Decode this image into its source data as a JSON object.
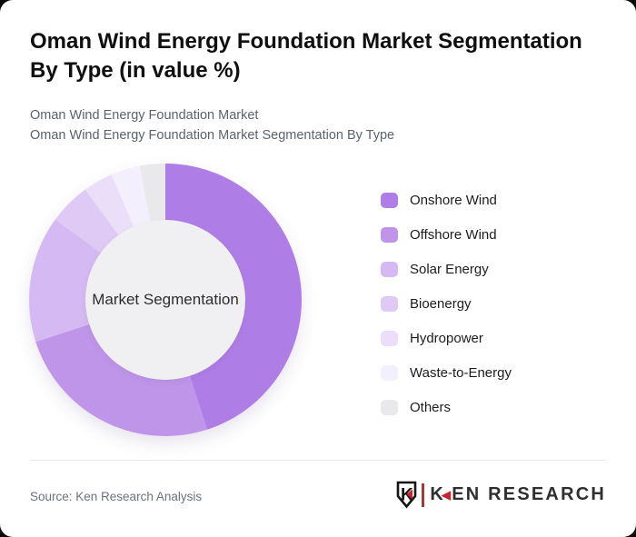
{
  "page": {
    "title": "Oman Wind Energy Foundation Market Segmentation By Type (in value %)",
    "subtitle_lines": [
      "Oman Wind Energy Foundation Market",
      "Oman Wind Energy Foundation Market Segmentation By Type"
    ]
  },
  "chart_data": {
    "type": "pie",
    "variant": "donut",
    "title": "Oman Wind Energy Foundation Market Segmentation By Type (in value %)",
    "center_label": "Market Segmentation",
    "categories": [
      "Onshore Wind",
      "Offshore Wind",
      "Solar Energy",
      "Bioenergy",
      "Hydropower",
      "Waste-to-Energy",
      "Others"
    ],
    "values": [
      45,
      25,
      15,
      5,
      3.5,
      3.5,
      3
    ],
    "unit": "value %",
    "colors": [
      "#af7de6",
      "#bf95ea",
      "#d5b9f2",
      "#decaf5",
      "#eadef8",
      "#f4effc",
      "#e9e8ea"
    ],
    "start_angle_deg": 0,
    "direction": "clockwise",
    "inner_radius_ratio": 0.59,
    "legend_position": "right",
    "hole_color": "#f0eff1"
  },
  "footer": {
    "source_text": "Source: Ken Research Analysis",
    "brand": {
      "k": "K",
      "rest": "EN RESEARCH"
    }
  }
}
